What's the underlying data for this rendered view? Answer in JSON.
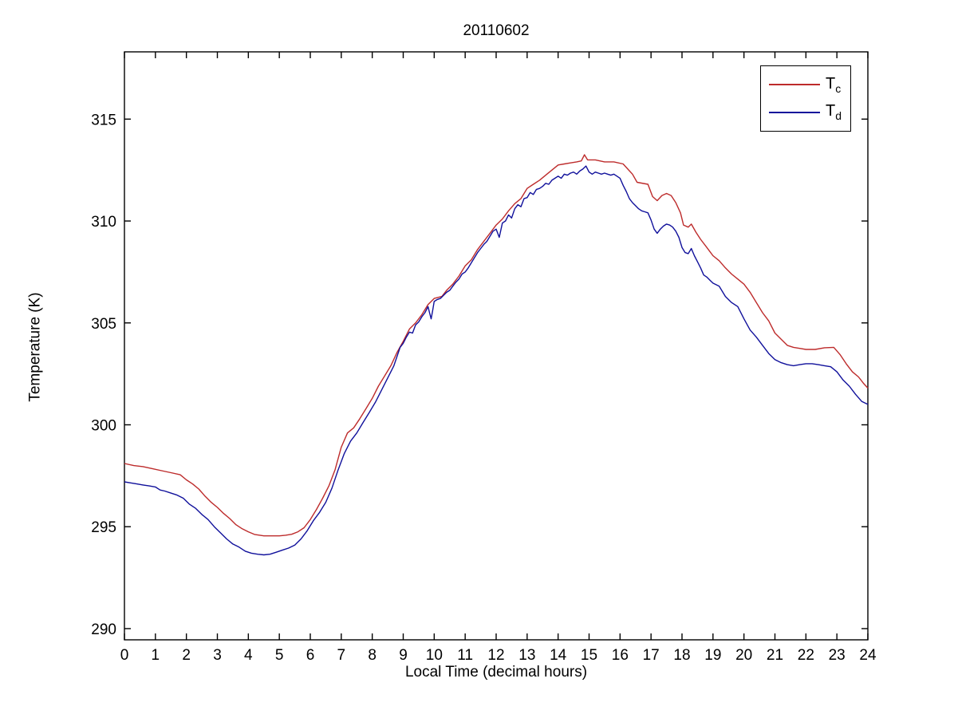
{
  "figure": {
    "title": "20110602",
    "xlabel": "Local Time (decimal hours)",
    "ylabel": "Temperature (K)"
  },
  "chart_data": {
    "type": "line",
    "title": "20110602",
    "xlabel": "Local Time (decimal hours)",
    "ylabel": "Temperature (K)",
    "xlim": [
      0,
      24
    ],
    "ylim": [
      289.45,
      318.3
    ],
    "xticks": [
      0,
      1,
      2,
      3,
      4,
      5,
      6,
      7,
      8,
      9,
      10,
      11,
      12,
      13,
      14,
      15,
      16,
      17,
      18,
      19,
      20,
      21,
      22,
      23,
      24
    ],
    "yticks": [
      290,
      295,
      300,
      305,
      310,
      315
    ],
    "grid": false,
    "background": "#ffffff",
    "axis_color": "#000000",
    "legend": {
      "position": "top-right",
      "entries": [
        {
          "main": "T",
          "sub": "c",
          "color": "#bd2b2b"
        },
        {
          "main": "T",
          "sub": "d",
          "color": "#10109b"
        }
      ]
    },
    "series": [
      {
        "name": "T_c",
        "color": "#bd2b2b",
        "points": [
          [
            0,
            298.1
          ],
          [
            0.3,
            298.0
          ],
          [
            0.6,
            297.95
          ],
          [
            0.9,
            297.85
          ],
          [
            1.2,
            297.75
          ],
          [
            1.5,
            297.65
          ],
          [
            1.8,
            297.55
          ],
          [
            2,
            297.3
          ],
          [
            2.2,
            297.1
          ],
          [
            2.4,
            296.85
          ],
          [
            2.6,
            296.5
          ],
          [
            2.8,
            296.2
          ],
          [
            3,
            295.95
          ],
          [
            3.2,
            295.65
          ],
          [
            3.4,
            295.4
          ],
          [
            3.6,
            295.1
          ],
          [
            3.8,
            294.9
          ],
          [
            4,
            294.75
          ],
          [
            4.2,
            294.62
          ],
          [
            4.5,
            294.55
          ],
          [
            5,
            294.55
          ],
          [
            5.2,
            294.58
          ],
          [
            5.4,
            294.63
          ],
          [
            5.6,
            294.75
          ],
          [
            5.8,
            294.95
          ],
          [
            6,
            295.35
          ],
          [
            6.2,
            295.85
          ],
          [
            6.4,
            296.4
          ],
          [
            6.6,
            297.0
          ],
          [
            6.8,
            297.8
          ],
          [
            7,
            298.9
          ],
          [
            7.2,
            299.6
          ],
          [
            7.4,
            299.85
          ],
          [
            7.6,
            300.3
          ],
          [
            7.8,
            300.8
          ],
          [
            8,
            301.3
          ],
          [
            8.2,
            301.9
          ],
          [
            8.4,
            302.4
          ],
          [
            8.6,
            302.9
          ],
          [
            8.8,
            303.55
          ],
          [
            9,
            304.1
          ],
          [
            9.2,
            304.7
          ],
          [
            9.4,
            305.0
          ],
          [
            9.6,
            305.4
          ],
          [
            9.8,
            305.9
          ],
          [
            10,
            306.2
          ],
          [
            10.25,
            306.3
          ],
          [
            10.4,
            306.6
          ],
          [
            10.6,
            306.9
          ],
          [
            10.8,
            307.3
          ],
          [
            11,
            307.8
          ],
          [
            11.2,
            308.1
          ],
          [
            11.4,
            308.6
          ],
          [
            11.6,
            309.0
          ],
          [
            11.8,
            309.4
          ],
          [
            12,
            309.8
          ],
          [
            12.2,
            310.1
          ],
          [
            12.4,
            310.5
          ],
          [
            12.6,
            310.85
          ],
          [
            12.8,
            311.1
          ],
          [
            13,
            311.6
          ],
          [
            13.2,
            311.8
          ],
          [
            13.4,
            312.0
          ],
          [
            13.6,
            312.25
          ],
          [
            13.8,
            312.5
          ],
          [
            14,
            312.75
          ],
          [
            14.2,
            312.8
          ],
          [
            14.4,
            312.85
          ],
          [
            14.6,
            312.9
          ],
          [
            14.75,
            312.95
          ],
          [
            14.85,
            313.25
          ],
          [
            14.95,
            313.0
          ],
          [
            15.2,
            313.0
          ],
          [
            15.5,
            312.9
          ],
          [
            15.8,
            312.9
          ],
          [
            16.1,
            312.8
          ],
          [
            16.25,
            312.55
          ],
          [
            16.4,
            312.3
          ],
          [
            16.55,
            311.9
          ],
          [
            16.9,
            311.8
          ],
          [
            17.05,
            311.2
          ],
          [
            17.2,
            311.0
          ],
          [
            17.35,
            311.25
          ],
          [
            17.5,
            311.35
          ],
          [
            17.65,
            311.25
          ],
          [
            17.8,
            310.9
          ],
          [
            17.95,
            310.4
          ],
          [
            18.05,
            309.8
          ],
          [
            18.2,
            309.7
          ],
          [
            18.3,
            309.85
          ],
          [
            18.45,
            309.45
          ],
          [
            18.6,
            309.1
          ],
          [
            18.8,
            308.7
          ],
          [
            19,
            308.3
          ],
          [
            19.2,
            308.05
          ],
          [
            19.4,
            307.7
          ],
          [
            19.6,
            307.4
          ],
          [
            19.8,
            307.15
          ],
          [
            20,
            306.9
          ],
          [
            20.2,
            306.5
          ],
          [
            20.4,
            306.0
          ],
          [
            20.6,
            305.5
          ],
          [
            20.8,
            305.1
          ],
          [
            21,
            304.5
          ],
          [
            21.2,
            304.2
          ],
          [
            21.4,
            303.9
          ],
          [
            21.6,
            303.8
          ],
          [
            21.8,
            303.75
          ],
          [
            22,
            303.7
          ],
          [
            22.3,
            303.7
          ],
          [
            22.6,
            303.78
          ],
          [
            22.9,
            303.8
          ],
          [
            23.1,
            303.45
          ],
          [
            23.3,
            303.0
          ],
          [
            23.5,
            302.6
          ],
          [
            23.7,
            302.35
          ],
          [
            23.85,
            302.05
          ],
          [
            24,
            301.8
          ]
        ]
      },
      {
        "name": "T_d",
        "color": "#10109b",
        "points": [
          [
            0,
            297.2
          ],
          [
            0.2,
            297.15
          ],
          [
            0.4,
            297.1
          ],
          [
            0.6,
            297.05
          ],
          [
            0.8,
            297.0
          ],
          [
            1,
            296.95
          ],
          [
            1.15,
            296.8
          ],
          [
            1.3,
            296.75
          ],
          [
            1.5,
            296.65
          ],
          [
            1.7,
            296.55
          ],
          [
            1.9,
            296.4
          ],
          [
            2.1,
            296.1
          ],
          [
            2.3,
            295.9
          ],
          [
            2.5,
            295.6
          ],
          [
            2.7,
            295.35
          ],
          [
            2.9,
            295.0
          ],
          [
            3.1,
            294.7
          ],
          [
            3.3,
            294.4
          ],
          [
            3.5,
            294.15
          ],
          [
            3.7,
            294.0
          ],
          [
            3.9,
            293.8
          ],
          [
            4.1,
            293.7
          ],
          [
            4.3,
            293.65
          ],
          [
            4.5,
            293.62
          ],
          [
            4.7,
            293.65
          ],
          [
            4.9,
            293.75
          ],
          [
            5.1,
            293.85
          ],
          [
            5.3,
            293.95
          ],
          [
            5.5,
            294.1
          ],
          [
            5.7,
            294.4
          ],
          [
            5.9,
            294.8
          ],
          [
            6.1,
            295.3
          ],
          [
            6.3,
            295.7
          ],
          [
            6.5,
            296.2
          ],
          [
            6.7,
            296.9
          ],
          [
            6.9,
            297.8
          ],
          [
            7.1,
            298.6
          ],
          [
            7.3,
            299.2
          ],
          [
            7.5,
            299.6
          ],
          [
            7.7,
            300.1
          ],
          [
            7.9,
            300.6
          ],
          [
            8.1,
            301.1
          ],
          [
            8.3,
            301.7
          ],
          [
            8.5,
            302.3
          ],
          [
            8.7,
            302.9
          ],
          [
            8.9,
            303.8
          ],
          [
            9,
            304.0
          ],
          [
            9.1,
            304.3
          ],
          [
            9.2,
            304.55
          ],
          [
            9.3,
            304.5
          ],
          [
            9.4,
            304.9
          ],
          [
            9.5,
            305.05
          ],
          [
            9.6,
            305.3
          ],
          [
            9.7,
            305.5
          ],
          [
            9.8,
            305.8
          ],
          [
            9.85,
            305.5
          ],
          [
            9.9,
            305.2
          ],
          [
            9.95,
            305.6
          ],
          [
            10,
            306.05
          ],
          [
            10.1,
            306.15
          ],
          [
            10.2,
            306.2
          ],
          [
            10.3,
            306.35
          ],
          [
            10.4,
            306.5
          ],
          [
            10.5,
            306.6
          ],
          [
            10.6,
            306.8
          ],
          [
            10.7,
            307.0
          ],
          [
            10.8,
            307.15
          ],
          [
            10.9,
            307.4
          ],
          [
            11,
            307.5
          ],
          [
            11.1,
            307.7
          ],
          [
            11.2,
            307.95
          ],
          [
            11.3,
            308.2
          ],
          [
            11.4,
            308.45
          ],
          [
            11.5,
            308.65
          ],
          [
            11.6,
            308.85
          ],
          [
            11.7,
            309.0
          ],
          [
            11.8,
            309.25
          ],
          [
            11.9,
            309.5
          ],
          [
            12,
            309.6
          ],
          [
            12.1,
            309.2
          ],
          [
            12.2,
            309.9
          ],
          [
            12.3,
            310.0
          ],
          [
            12.4,
            310.3
          ],
          [
            12.5,
            310.15
          ],
          [
            12.6,
            310.6
          ],
          [
            12.7,
            310.8
          ],
          [
            12.8,
            310.7
          ],
          [
            12.9,
            311.1
          ],
          [
            13,
            311.15
          ],
          [
            13.1,
            311.4
          ],
          [
            13.2,
            311.3
          ],
          [
            13.3,
            311.55
          ],
          [
            13.4,
            311.6
          ],
          [
            13.5,
            311.7
          ],
          [
            13.6,
            311.85
          ],
          [
            13.7,
            311.8
          ],
          [
            13.8,
            312.0
          ],
          [
            13.9,
            312.1
          ],
          [
            14,
            312.2
          ],
          [
            14.1,
            312.1
          ],
          [
            14.2,
            312.3
          ],
          [
            14.3,
            312.25
          ],
          [
            14.4,
            312.35
          ],
          [
            14.5,
            312.4
          ],
          [
            14.6,
            312.3
          ],
          [
            14.7,
            312.45
          ],
          [
            14.8,
            312.55
          ],
          [
            14.9,
            312.7
          ],
          [
            15,
            312.4
          ],
          [
            15.1,
            312.3
          ],
          [
            15.2,
            312.4
          ],
          [
            15.3,
            312.35
          ],
          [
            15.4,
            312.3
          ],
          [
            15.5,
            312.35
          ],
          [
            15.6,
            312.3
          ],
          [
            15.7,
            312.25
          ],
          [
            15.8,
            312.3
          ],
          [
            15.9,
            312.2
          ],
          [
            16,
            312.1
          ],
          [
            16.1,
            311.75
          ],
          [
            16.2,
            311.45
          ],
          [
            16.3,
            311.1
          ],
          [
            16.4,
            310.9
          ],
          [
            16.5,
            310.75
          ],
          [
            16.6,
            310.6
          ],
          [
            16.7,
            310.5
          ],
          [
            16.8,
            310.45
          ],
          [
            16.9,
            310.4
          ],
          [
            17,
            310.05
          ],
          [
            17.1,
            309.6
          ],
          [
            17.2,
            309.4
          ],
          [
            17.3,
            309.6
          ],
          [
            17.4,
            309.75
          ],
          [
            17.5,
            309.85
          ],
          [
            17.6,
            309.8
          ],
          [
            17.7,
            309.7
          ],
          [
            17.8,
            309.5
          ],
          [
            17.9,
            309.2
          ],
          [
            18,
            308.7
          ],
          [
            18.1,
            308.45
          ],
          [
            18.2,
            308.4
          ],
          [
            18.3,
            308.65
          ],
          [
            18.4,
            308.3
          ],
          [
            18.5,
            308.0
          ],
          [
            18.6,
            307.7
          ],
          [
            18.7,
            307.35
          ],
          [
            18.8,
            307.25
          ],
          [
            18.9,
            307.1
          ],
          [
            19,
            306.95
          ],
          [
            19.2,
            306.8
          ],
          [
            19.4,
            306.3
          ],
          [
            19.6,
            306.0
          ],
          [
            19.8,
            305.8
          ],
          [
            20,
            305.2
          ],
          [
            20.2,
            304.65
          ],
          [
            20.4,
            304.3
          ],
          [
            20.6,
            303.9
          ],
          [
            20.8,
            303.5
          ],
          [
            21,
            303.2
          ],
          [
            21.2,
            303.05
          ],
          [
            21.4,
            302.95
          ],
          [
            21.6,
            302.9
          ],
          [
            21.8,
            302.95
          ],
          [
            22,
            303.0
          ],
          [
            22.2,
            303.0
          ],
          [
            22.4,
            302.95
          ],
          [
            22.6,
            302.9
          ],
          [
            22.8,
            302.85
          ],
          [
            23,
            302.6
          ],
          [
            23.2,
            302.2
          ],
          [
            23.4,
            301.9
          ],
          [
            23.6,
            301.5
          ],
          [
            23.8,
            301.15
          ],
          [
            24,
            301.0
          ]
        ]
      }
    ]
  }
}
